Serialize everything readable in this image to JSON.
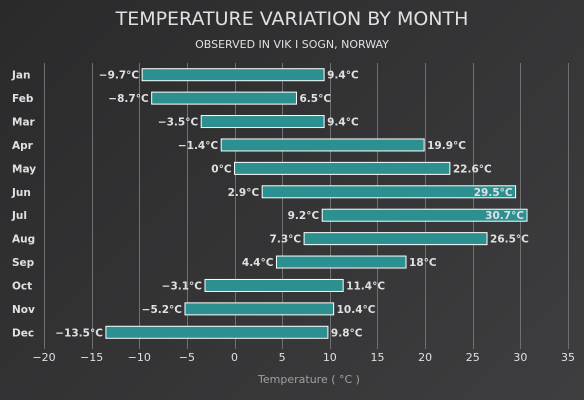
{
  "chart_data": {
    "type": "columnrange",
    "orientation": "horizontal",
    "title": "TEMPERATURE VARIATION BY MONTH",
    "subtitle": "OBSERVED IN VIK I SOGN, NORWAY",
    "xlabel": "Temperature ( °C )",
    "unit": "°C",
    "categories": [
      "Jan",
      "Feb",
      "Mar",
      "Apr",
      "May",
      "Jun",
      "Jul",
      "Aug",
      "Sep",
      "Oct",
      "Nov",
      "Dec"
    ],
    "low": [
      -9.7,
      -8.7,
      -3.5,
      -1.4,
      0,
      2.9,
      9.2,
      7.3,
      4.4,
      -3.1,
      -5.2,
      -13.5
    ],
    "high": [
      9.4,
      6.5,
      9.4,
      19.9,
      22.6,
      29.5,
      30.7,
      26.5,
      18,
      11.4,
      10.4,
      9.8
    ],
    "low_labels": [
      "−9.7°C",
      "−8.7°C",
      "−3.5°C",
      "−1.4°C",
      "0°C",
      "2.9°C",
      "9.2°C",
      "7.3°C",
      "4.4°C",
      "−3.1°C",
      "−5.2°C",
      "−13.5°C"
    ],
    "high_labels": [
      "9.4°C",
      "6.5°C",
      "9.4°C",
      "19.9°C",
      "22.6°C",
      "29.5°C",
      "30.7°C",
      "26.5°C",
      "18°C",
      "11.4°C",
      "10.4°C",
      "9.8°C"
    ],
    "xlim": [
      -20,
      35
    ],
    "ticks": [
      -20,
      -15,
      -10,
      -5,
      0,
      5,
      10,
      15,
      20,
      25,
      30,
      35
    ],
    "tick_labels": [
      "−20",
      "−15",
      "−10",
      "−5",
      "0",
      "5",
      "10",
      "15",
      "20",
      "25",
      "30",
      "35"
    ],
    "grid": true,
    "legend": false,
    "colors": {
      "bar": "#2b908f",
      "bar_border": "#ffffff",
      "grid": "#707073",
      "text": "#e0e0e3"
    }
  }
}
